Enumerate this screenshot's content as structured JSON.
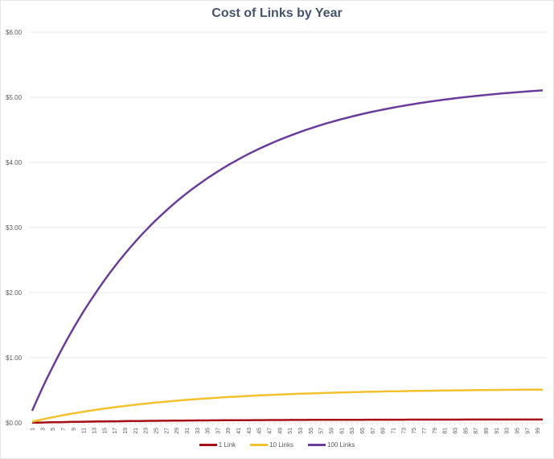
{
  "chart_data": {
    "type": "line",
    "title": "Cost of Links by Year",
    "xlabel": "",
    "ylabel": "",
    "ylim": [
      0,
      6
    ],
    "y_ticks": [
      "$0.00",
      "$1.00",
      "$2.00",
      "$3.00",
      "$4.00",
      "$5.00",
      "$6.00"
    ],
    "x_tick_labels_shown": "odd years 1..99",
    "grid": true,
    "legend_position": "bottom",
    "x": [
      1,
      2,
      3,
      4,
      5,
      6,
      7,
      8,
      9,
      10,
      11,
      12,
      13,
      14,
      15,
      16,
      17,
      18,
      19,
      20,
      21,
      22,
      23,
      24,
      25,
      26,
      27,
      28,
      29,
      30,
      31,
      32,
      33,
      34,
      35,
      36,
      37,
      38,
      39,
      40,
      41,
      42,
      43,
      44,
      45,
      46,
      47,
      48,
      49,
      50,
      51,
      52,
      53,
      54,
      55,
      56,
      57,
      58,
      59,
      60,
      61,
      62,
      63,
      64,
      65,
      66,
      67,
      68,
      69,
      70,
      71,
      72,
      73,
      74,
      75,
      76,
      77,
      78,
      79,
      80,
      81,
      82,
      83,
      84,
      85,
      86,
      87,
      88,
      89,
      90,
      91,
      92,
      93,
      94,
      95,
      96,
      97,
      98,
      99,
      100
    ],
    "series": [
      {
        "name": "1 Link",
        "color": "#a50f15",
        "model": "0.0525*(1-0.9647^n)"
      },
      {
        "name": "10 Links",
        "color": "#f2c12e",
        "model": "0.525*(1-0.9647^n)"
      },
      {
        "name": "100 Links",
        "color": "#6a3d9a",
        "model": "5.25*(1-0.9647^n)",
        "approx_values_at": {
          "1": 0.19,
          "10": 1.59,
          "25": 3.11,
          "50": 4.38,
          "75": 4.89,
          "100": 5.12
        }
      }
    ]
  },
  "legend": {
    "items": [
      {
        "label": "1 Link",
        "color": "#a50f15"
      },
      {
        "label": "10 Links",
        "color": "#f2c12e"
      },
      {
        "label": "100 Links",
        "color": "#6a3d9a"
      }
    ]
  }
}
